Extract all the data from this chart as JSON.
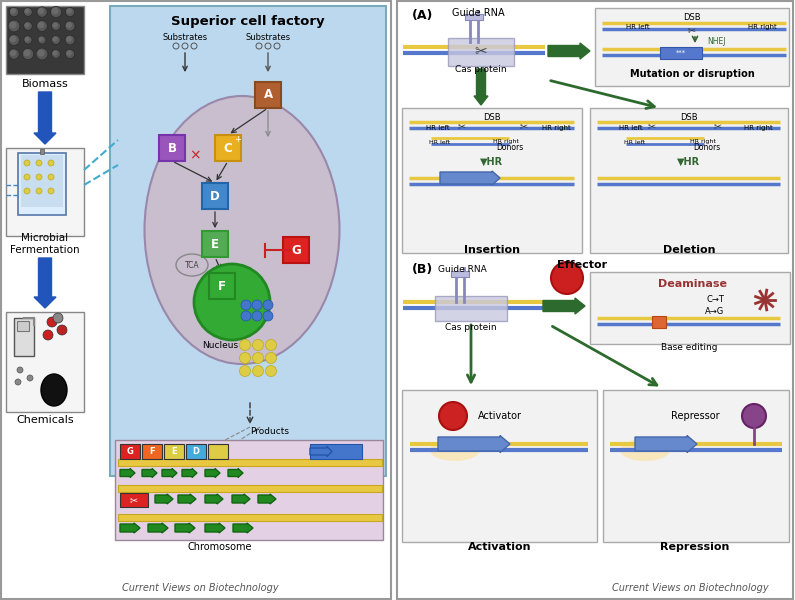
{
  "title_left": "Superior cell factory",
  "caption_left": "Current Views on Biotechnology",
  "caption_right": "Current Views on Biotechnology",
  "label_biomass": "Biomass",
  "label_microbial": "Microbial\nFermentation",
  "label_chemicals": "Chemicals",
  "label_chromosome": "Chromosome",
  "label_nucleus": "Nucleus",
  "label_substrates1": "Substrates",
  "label_substrates2": "Substrates",
  "label_products": "Products",
  "panel_a_label": "(A)",
  "panel_b_label": "(B)",
  "guide_rna": "Guide RNA",
  "cas_protein_a": "Cas protein",
  "cas_protein_b": "Cas protein",
  "mutation_label": "Mutation or disruption",
  "insertion_label": "Insertion",
  "deletion_label": "Deletion",
  "effector_label": "Effector",
  "deaminase_label": "Deaminase",
  "base_editing_label": "Base editing",
  "activation_label": "Activation",
  "repression_label": "Repression",
  "activator_label": "Activator",
  "repressor_label": "Repressor",
  "dsb_label": "DSB",
  "hr_left": "HR left",
  "hr_right": "HR right",
  "nhej_label": "NHEJ",
  "hr_label": "▼HR",
  "donors_label": "Donors",
  "cell_bg_color": "#bcd8ee",
  "cell_interior_color": "#c8bece",
  "chromosome_bg_color": "#e4d0e4",
  "dna_yellow": "#e8c840",
  "dna_blue_strand": "#5577cc",
  "guide_rna_color": "#9999bb",
  "cas_color": "#c0c0dd",
  "effector_red": "#cc2020",
  "deaminase_color": "#993333",
  "activator_color": "#cc2222",
  "repressor_color": "#884488",
  "arrow_blue": "#2255bb",
  "arrow_green_fat": "#2d6a2d",
  "box_bg": "#f2f2f2",
  "box_border": "#aaaaaa"
}
